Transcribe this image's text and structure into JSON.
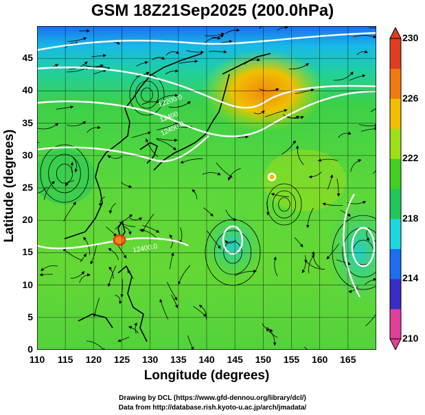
{
  "title": "GSM 18Z21Sep2025 (200.0hPa)",
  "x_axis": {
    "label": "Longitude (degrees)",
    "range": [
      110,
      170
    ],
    "ticks": [
      110,
      115,
      120,
      125,
      130,
      135,
      140,
      145,
      150,
      155,
      160,
      165
    ]
  },
  "y_axis": {
    "label": "Latitude  (degrees)",
    "range": [
      0,
      50
    ],
    "ticks": [
      0,
      5,
      10,
      15,
      20,
      25,
      30,
      35,
      40,
      45
    ]
  },
  "colorbar": {
    "range": [
      210,
      230
    ],
    "labels": [
      230,
      226,
      222,
      218,
      214,
      210
    ],
    "colors": [
      "#e0409a",
      "#3a2cc8",
      "#1a6ef0",
      "#1ad8e0",
      "#20c858",
      "#40d020",
      "#9ce018",
      "#f0c000",
      "#f07a10",
      "#e03c20"
    ]
  },
  "contour_labels": [
    "12200.0",
    "12400",
    "12450.0",
    "12400.0"
  ],
  "credits": {
    "drawing": "Drawing by DCL (https://www.gfd-dennou.org/library/dcl/)",
    "data": "Data from http://database.rish.kyoto-u.ac.jp/arch/jmadata/"
  }
}
